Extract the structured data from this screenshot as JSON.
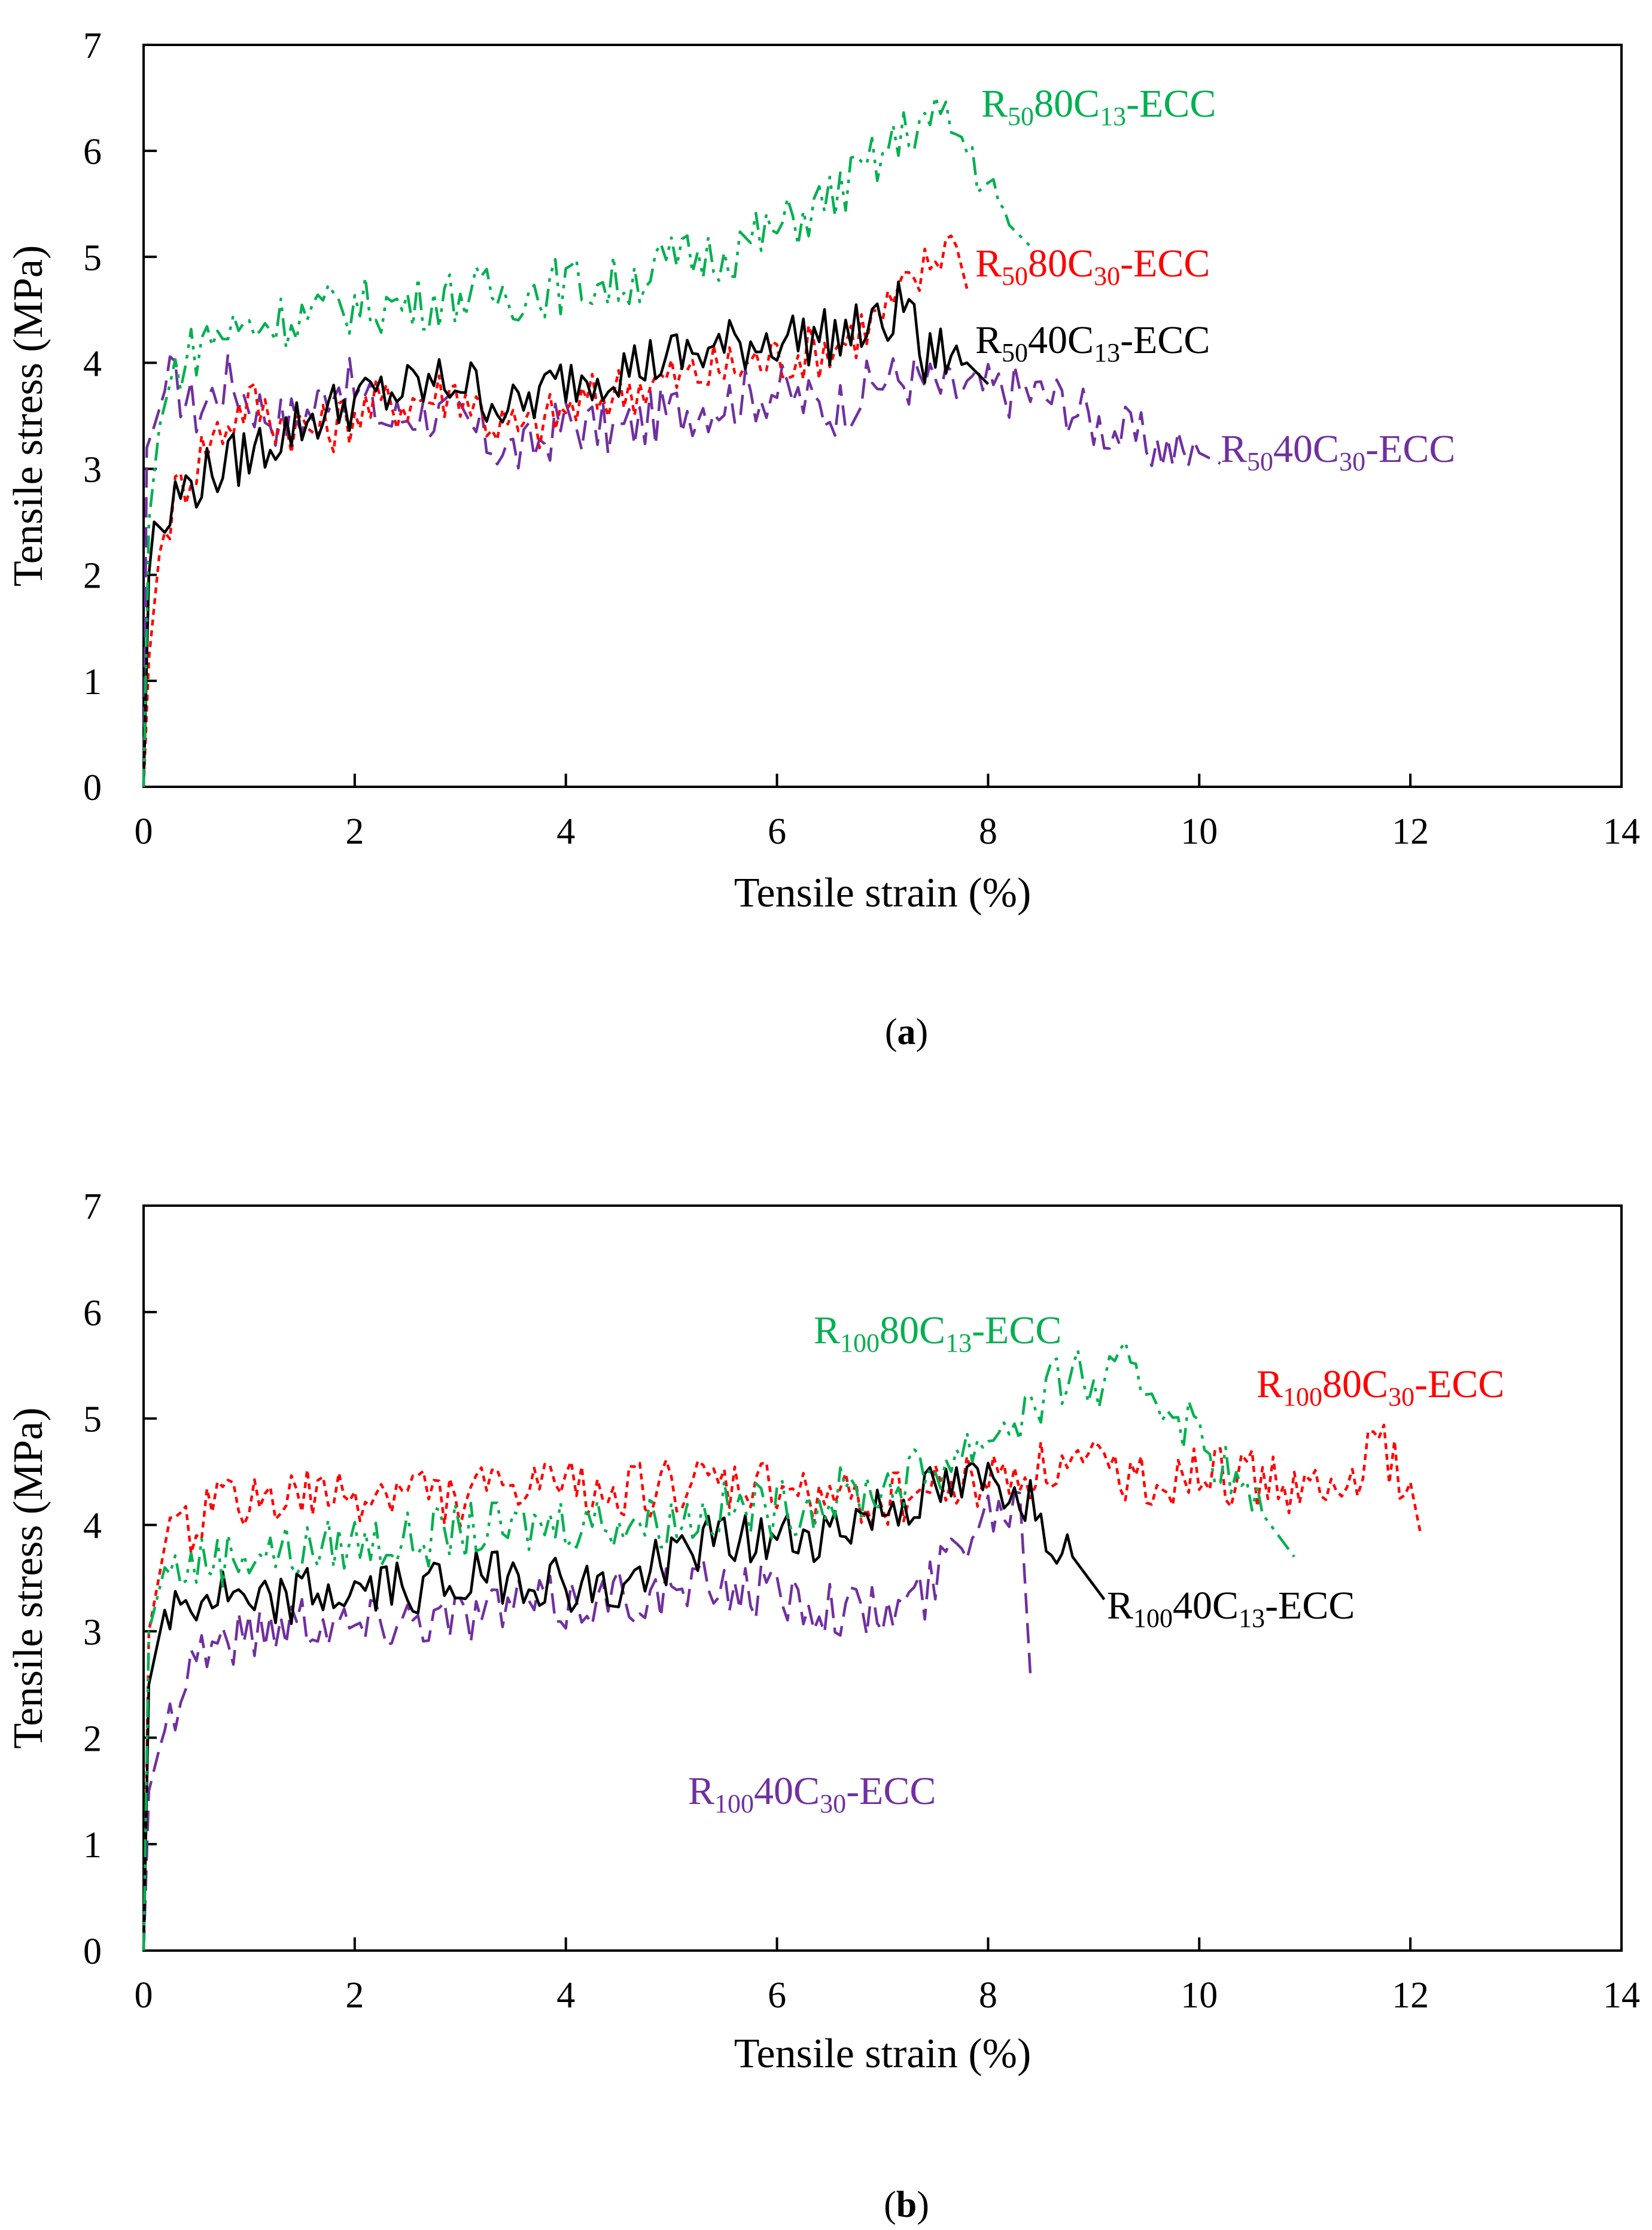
{
  "chart_data": [
    {
      "type": "line",
      "panel_label": "a",
      "title": "",
      "xlabel": "Tensile strain (%)",
      "ylabel": "Tensile stress (MPa)",
      "xlim": [
        0,
        14
      ],
      "ylim": [
        0,
        7
      ],
      "xticks": [
        0,
        2,
        4,
        6,
        8,
        10,
        12,
        14
      ],
      "yticks": [
        0,
        1,
        2,
        3,
        4,
        5,
        6,
        7
      ],
      "grid": false,
      "series": [
        {
          "name": "R5040C30-ECC",
          "label": {
            "pre": "R",
            "sub1": "50",
            "mid": "40C",
            "sub2": "30",
            "post": "-ECC"
          },
          "color": "#7030a0",
          "dash": "dashed",
          "points": [
            [
              0,
              0
            ],
            [
              0.03,
              3.2
            ],
            [
              0.1,
              3.4
            ],
            [
              0.25,
              3.9
            ],
            [
              0.5,
              3.6
            ],
            [
              0.8,
              3.9
            ],
            [
              1.0,
              3.7
            ],
            [
              1.3,
              3.5
            ],
            [
              1.6,
              3.6
            ],
            [
              1.8,
              3.9
            ],
            [
              2.0,
              3.8
            ],
            [
              2.3,
              3.5
            ],
            [
              2.6,
              3.6
            ],
            [
              3.0,
              3.5
            ],
            [
              3.3,
              3.3
            ],
            [
              3.6,
              3.2
            ],
            [
              4.0,
              3.5
            ],
            [
              4.5,
              3.4
            ],
            [
              5.0,
              3.6
            ],
            [
              5.5,
              3.7
            ],
            [
              6.0,
              3.8
            ],
            [
              6.5,
              3.6
            ],
            [
              7.0,
              3.9
            ],
            [
              7.3,
              3.9
            ],
            [
              7.6,
              3.8
            ],
            [
              8.0,
              3.8
            ],
            [
              8.3,
              3.8
            ],
            [
              8.7,
              3.7
            ],
            [
              9.0,
              3.5
            ],
            [
              9.5,
              3.3
            ],
            [
              10.0,
              3.15
            ],
            [
              10.2,
              3.05
            ]
          ]
        },
        {
          "name": "R5080C30-ECC",
          "label": {
            "pre": "R",
            "sub1": "50",
            "mid": "80C",
            "sub2": "30",
            "post": "-ECC"
          },
          "color": "#ff0000",
          "dash": "dotted",
          "points": [
            [
              0,
              0
            ],
            [
              0.05,
              1.2
            ],
            [
              0.15,
              2.2
            ],
            [
              0.3,
              2.8
            ],
            [
              0.6,
              3.3
            ],
            [
              1.0,
              3.7
            ],
            [
              1.3,
              3.5
            ],
            [
              1.7,
              3.4
            ],
            [
              2.0,
              3.6
            ],
            [
              2.5,
              3.7
            ],
            [
              3.0,
              3.8
            ],
            [
              3.3,
              3.5
            ],
            [
              3.6,
              3.4
            ],
            [
              4.0,
              3.6
            ],
            [
              4.5,
              3.8
            ],
            [
              5.0,
              3.9
            ],
            [
              5.5,
              4.0
            ],
            [
              6.0,
              4.1
            ],
            [
              6.5,
              4.2
            ],
            [
              7.0,
              4.5
            ],
            [
              7.3,
              4.8
            ],
            [
              7.6,
              5.2
            ],
            [
              7.7,
              5.1
            ],
            [
              7.8,
              4.7
            ]
          ]
        },
        {
          "name": "R5040C13-ECC",
          "label": {
            "pre": "R",
            "sub1": "50",
            "mid": "40C",
            "sub2": "13",
            "post": "-ECC"
          },
          "color": "#000000",
          "dash": "solid",
          "points": [
            [
              0,
              0
            ],
            [
              0.05,
              2.0
            ],
            [
              0.1,
              2.5
            ],
            [
              0.2,
              2.4
            ],
            [
              0.3,
              2.8
            ],
            [
              0.6,
              3.0
            ],
            [
              1.0,
              3.2
            ],
            [
              1.5,
              3.5
            ],
            [
              2.0,
              3.7
            ],
            [
              2.5,
              3.8
            ],
            [
              3.0,
              3.9
            ],
            [
              3.5,
              3.6
            ],
            [
              4.0,
              3.9
            ],
            [
              4.5,
              4.0
            ],
            [
              5.0,
              4.1
            ],
            [
              5.5,
              4.2
            ],
            [
              6.0,
              4.3
            ],
            [
              6.5,
              4.3
            ],
            [
              7.0,
              4.4
            ],
            [
              7.3,
              4.7
            ],
            [
              7.35,
              3.9
            ],
            [
              7.5,
              4.2
            ],
            [
              7.8,
              4.0
            ],
            [
              8.0,
              3.8
            ]
          ]
        },
        {
          "name": "R5080C13-ECC",
          "label": {
            "pre": "R",
            "sub1": "50",
            "mid": "80C",
            "sub2": "13",
            "post": "-ECC"
          },
          "color": "#00b050",
          "dash": "dashdotdot",
          "points": [
            [
              0,
              0
            ],
            [
              0.05,
              2.5
            ],
            [
              0.15,
              3.4
            ],
            [
              0.3,
              4.0
            ],
            [
              0.6,
              4.3
            ],
            [
              1.0,
              4.4
            ],
            [
              1.5,
              4.5
            ],
            [
              2.0,
              4.6
            ],
            [
              2.5,
              4.6
            ],
            [
              3.0,
              4.7
            ],
            [
              3.5,
              4.7
            ],
            [
              4.0,
              4.8
            ],
            [
              4.5,
              4.8
            ],
            [
              5.0,
              5.0
            ],
            [
              5.5,
              5.1
            ],
            [
              6.0,
              5.3
            ],
            [
              6.5,
              5.6
            ],
            [
              7.0,
              6.0
            ],
            [
              7.3,
              6.3
            ],
            [
              7.6,
              6.35
            ],
            [
              7.8,
              6.1
            ],
            [
              8.0,
              5.7
            ],
            [
              8.2,
              5.3
            ],
            [
              8.4,
              5.1
            ]
          ]
        }
      ]
    },
    {
      "type": "line",
      "panel_label": "b",
      "title": "",
      "xlabel": "Tensile strain (%)",
      "ylabel": "Tensile stress (MPa)",
      "xlim": [
        0,
        14
      ],
      "ylim": [
        0,
        7
      ],
      "xticks": [
        0,
        2,
        4,
        6,
        8,
        10,
        12,
        14
      ],
      "yticks": [
        0,
        1,
        2,
        3,
        4,
        5,
        6,
        7
      ],
      "grid": false,
      "series": [
        {
          "name": "R10040C30-ECC",
          "label": {
            "pre": "R",
            "sub1": "100",
            "mid": "40C",
            "sub2": "30",
            "post": "-ECC"
          },
          "color": "#7030a0",
          "dash": "dashed",
          "points": [
            [
              0,
              0
            ],
            [
              0.05,
              1.5
            ],
            [
              0.15,
              1.9
            ],
            [
              0.3,
              2.4
            ],
            [
              0.5,
              2.9
            ],
            [
              0.9,
              3.0
            ],
            [
              1.5,
              3.2
            ],
            [
              2.0,
              3.1
            ],
            [
              2.5,
              3.2
            ],
            [
              3.0,
              3.2
            ],
            [
              3.5,
              3.3
            ],
            [
              4.0,
              3.3
            ],
            [
              4.5,
              3.4
            ],
            [
              5.0,
              3.4
            ],
            [
              5.5,
              3.5
            ],
            [
              6.0,
              3.4
            ],
            [
              6.5,
              3.3
            ],
            [
              7.0,
              3.2
            ],
            [
              7.4,
              3.4
            ],
            [
              7.7,
              3.9
            ],
            [
              8.0,
              4.2
            ],
            [
              8.3,
              4.3
            ],
            [
              8.4,
              2.6
            ]
          ]
        },
        {
          "name": "R100 80C30-ECC",
          "label": {
            "pre": "R",
            "sub1": "100",
            "mid": "80C",
            "sub2": "30",
            "post": "-ECC"
          },
          "color": "#ff0000",
          "dash": "dotted",
          "points": [
            [
              0,
              0
            ],
            [
              0.05,
              3.0
            ],
            [
              0.2,
              3.8
            ],
            [
              0.6,
              4.2
            ],
            [
              1.0,
              4.3
            ],
            [
              1.5,
              4.3
            ],
            [
              2.0,
              4.3
            ],
            [
              2.5,
              4.4
            ],
            [
              3.0,
              4.3
            ],
            [
              3.5,
              4.4
            ],
            [
              4.0,
              4.4
            ],
            [
              4.5,
              4.4
            ],
            [
              5.0,
              4.4
            ],
            [
              5.5,
              4.4
            ],
            [
              6.0,
              4.4
            ],
            [
              6.5,
              4.3
            ],
            [
              7.0,
              4.3
            ],
            [
              7.5,
              4.4
            ],
            [
              8.0,
              4.5
            ],
            [
              8.5,
              4.6
            ],
            [
              9.0,
              4.6
            ],
            [
              9.5,
              4.5
            ],
            [
              10.0,
              4.5
            ],
            [
              10.5,
              4.5
            ],
            [
              11.0,
              4.4
            ],
            [
              11.3,
              4.3
            ],
            [
              11.7,
              4.8
            ],
            [
              12.0,
              4.4
            ],
            [
              12.1,
              3.9
            ]
          ]
        },
        {
          "name": "R10040C13-ECC",
          "label": {
            "pre": "R",
            "sub1": "100",
            "mid": "40C",
            "sub2": "13",
            "post": "-ECC"
          },
          "color": "#000000",
          "dash": "solid",
          "points": [
            [
              0,
              0
            ],
            [
              0.05,
              2.5
            ],
            [
              0.2,
              3.2
            ],
            [
              0.4,
              3.3
            ],
            [
              0.8,
              3.4
            ],
            [
              1.0,
              3.2
            ],
            [
              1.5,
              3.4
            ],
            [
              2.0,
              3.4
            ],
            [
              2.5,
              3.5
            ],
            [
              3.0,
              3.5
            ],
            [
              3.5,
              3.6
            ],
            [
              4.0,
              3.5
            ],
            [
              4.5,
              3.4
            ],
            [
              5.0,
              3.8
            ],
            [
              5.5,
              3.9
            ],
            [
              6.0,
              3.9
            ],
            [
              6.5,
              4.0
            ],
            [
              7.0,
              4.2
            ],
            [
              7.5,
              4.35
            ],
            [
              8.0,
              4.45
            ],
            [
              8.3,
              4.4
            ],
            [
              8.6,
              4.0
            ],
            [
              8.8,
              3.7
            ],
            [
              9.1,
              3.3
            ]
          ]
        },
        {
          "name": "R10080C13-ECC",
          "label": {
            "pre": "R",
            "sub1": "100",
            "mid": "80C",
            "sub2": "13",
            "post": "-ECC"
          },
          "color": "#00b050",
          "dash": "dashdotdot",
          "points": [
            [
              0,
              0
            ],
            [
              0.05,
              3.0
            ],
            [
              0.2,
              3.6
            ],
            [
              0.5,
              3.7
            ],
            [
              1.0,
              3.8
            ],
            [
              1.5,
              3.8
            ],
            [
              2.0,
              3.9
            ],
            [
              2.5,
              3.9
            ],
            [
              3.0,
              4.0
            ],
            [
              3.5,
              4.0
            ],
            [
              4.0,
              4.1
            ],
            [
              4.5,
              4.1
            ],
            [
              5.0,
              4.1
            ],
            [
              5.5,
              4.2
            ],
            [
              6.0,
              4.2
            ],
            [
              6.5,
              4.3
            ],
            [
              7.0,
              4.4
            ],
            [
              7.5,
              4.6
            ],
            [
              8.0,
              4.9
            ],
            [
              8.5,
              5.2
            ],
            [
              8.8,
              5.55
            ],
            [
              9.0,
              5.3
            ],
            [
              9.3,
              5.5
            ],
            [
              9.6,
              5.3
            ],
            [
              10.0,
              4.9
            ],
            [
              10.3,
              4.5
            ],
            [
              10.6,
              4.1
            ],
            [
              10.9,
              3.7
            ]
          ]
        }
      ]
    }
  ]
}
